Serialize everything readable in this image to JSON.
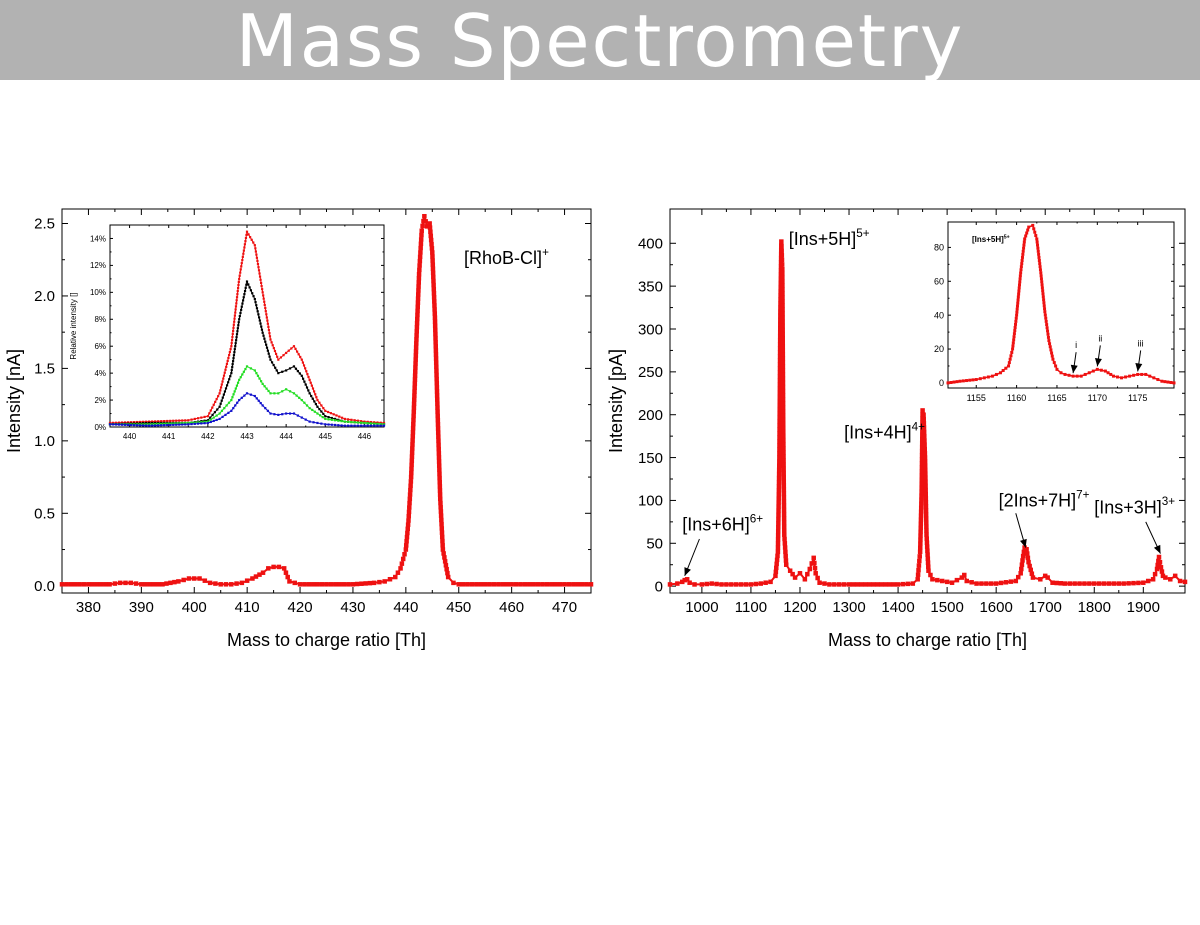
{
  "header": {
    "title": "Mass Spectrometry"
  },
  "colors": {
    "title_bar": "#b2b2b2",
    "title_text": "#ffffff",
    "series_red": "#ee1111",
    "inset_black": "#000000",
    "inset_green": "#22dd22",
    "inset_blue": "#1111cc"
  },
  "chart_data": [
    {
      "type": "line",
      "xlabel": "Mass to charge ratio [Th]",
      "ylabel": "Intensity [nA]",
      "xlim": [
        375,
        475
      ],
      "ylim": [
        -0.05,
        2.6
      ],
      "xticks": [
        380,
        390,
        400,
        410,
        420,
        430,
        440,
        450,
        460,
        470
      ],
      "yticks": [
        0.0,
        0.5,
        1.0,
        1.5,
        2.0,
        2.5
      ],
      "ytick_labels": [
        "0.0",
        "0.5",
        "1.0",
        "1.5",
        "2.0",
        "2.5"
      ],
      "grid": false,
      "series": [
        {
          "color": "#ee1111",
          "marker": "square",
          "x": [
            375,
            380,
            384,
            386,
            388,
            390,
            394,
            397,
            399,
            400,
            401,
            403,
            405,
            407,
            409,
            411,
            413,
            414,
            415,
            416,
            417,
            418,
            420,
            425,
            430,
            434,
            436,
            438,
            439,
            440,
            440.5,
            441,
            441.5,
            442,
            442.5,
            443,
            443.5,
            444,
            444.5,
            445,
            445.5,
            446,
            446.5,
            447,
            448,
            449,
            450,
            455,
            460,
            465,
            470,
            475
          ],
          "y": [
            0.01,
            0.01,
            0.01,
            0.02,
            0.02,
            0.01,
            0.01,
            0.03,
            0.05,
            0.05,
            0.05,
            0.02,
            0.01,
            0.01,
            0.02,
            0.05,
            0.09,
            0.12,
            0.13,
            0.13,
            0.12,
            0.03,
            0.01,
            0.01,
            0.01,
            0.02,
            0.03,
            0.06,
            0.12,
            0.25,
            0.45,
            0.75,
            1.2,
            1.7,
            2.15,
            2.45,
            2.55,
            2.48,
            2.5,
            2.3,
            1.85,
            1.2,
            0.6,
            0.25,
            0.06,
            0.02,
            0.01,
            0.01,
            0.01,
            0.01,
            0.01,
            0.01
          ]
        }
      ],
      "annotations": [
        {
          "text": "[RhoB-Cl]",
          "superscript": "+",
          "x": 451,
          "y": 2.22
        }
      ],
      "inset": {
        "type": "line",
        "ylabel": "Relative intensity []",
        "xlim": [
          439.5,
          446.5
        ],
        "ylim": [
          0,
          15
        ],
        "xticks": [
          440,
          441,
          442,
          443,
          444,
          445,
          446
        ],
        "yticks": [
          0,
          2,
          4,
          6,
          8,
          10,
          12,
          14
        ],
        "ytick_labels": [
          "0%",
          "2%",
          "4%",
          "6%",
          "8%",
          "10%",
          "12%",
          "14%"
        ],
        "series": [
          {
            "color": "#ee1111",
            "x": [
              439.5,
              440.5,
              441.5,
              442,
              442.3,
              442.6,
              442.8,
              443,
              443.2,
              443.4,
              443.6,
              443.8,
              444,
              444.2,
              444.4,
              444.6,
              444.8,
              445,
              445.5,
              446,
              446.5
            ],
            "y": [
              0.3,
              0.4,
              0.5,
              0.8,
              2.5,
              6,
              11,
              14.5,
              13.5,
              10,
              6.5,
              5,
              5.5,
              6,
              5,
              3.5,
              2,
              1.2,
              0.6,
              0.4,
              0.3
            ]
          },
          {
            "color": "#000000",
            "x": [
              439.5,
              440.5,
              441.5,
              442,
              442.3,
              442.6,
              442.8,
              443,
              443.2,
              443.4,
              443.6,
              443.8,
              444,
              444.2,
              444.4,
              444.6,
              444.8,
              445,
              445.5,
              446,
              446.5
            ],
            "y": [
              0.2,
              0.3,
              0.3,
              0.5,
              1.5,
              4,
              8,
              10.8,
              9.5,
              7,
              5,
              4,
              4.2,
              4.5,
              3.8,
              2.5,
              1.5,
              0.8,
              0.4,
              0.3,
              0.2
            ]
          },
          {
            "color": "#22dd22",
            "x": [
              439.5,
              440.5,
              441.5,
              442,
              442.3,
              442.6,
              442.8,
              443,
              443.2,
              443.4,
              443.6,
              443.8,
              444,
              444.2,
              444.4,
              444.6,
              444.8,
              445,
              445.5,
              446,
              446.5
            ],
            "y": [
              0.2,
              0.2,
              0.3,
              0.4,
              1,
              2,
              3.5,
              4.5,
              4.2,
              3.2,
              2.5,
              2.5,
              2.8,
              2.5,
              2,
              1.4,
              1,
              0.6,
              0.4,
              0.3,
              0.2
            ]
          },
          {
            "color": "#1111cc",
            "x": [
              439.5,
              440.5,
              441.5,
              442,
              442.3,
              442.6,
              442.8,
              443,
              443.2,
              443.4,
              443.6,
              443.8,
              444,
              444.2,
              444.4,
              444.6,
              444.8,
              445,
              445.5,
              446,
              446.5
            ],
            "y": [
              0.2,
              0.1,
              0.2,
              0.3,
              0.6,
              1.2,
              2,
              2.5,
              2.3,
              1.6,
              1,
              0.9,
              1,
              1,
              0.7,
              0.4,
              0.3,
              0.2,
              0.1,
              0.1,
              0.1
            ]
          }
        ]
      }
    },
    {
      "type": "line",
      "xlabel": "Mass to charge ratio [Th]",
      "ylabel": "Intensity [pA]",
      "xlim": [
        935,
        1985
      ],
      "ylim": [
        -8,
        440
      ],
      "xticks": [
        1000,
        1100,
        1200,
        1300,
        1400,
        1500,
        1600,
        1700,
        1800,
        1900
      ],
      "yticks": [
        0,
        50,
        100,
        150,
        200,
        250,
        300,
        350,
        400
      ],
      "ytick_labels": [
        "0",
        "50",
        "100",
        "150",
        "200",
        "250",
        "300",
        "350",
        "400"
      ],
      "grid": false,
      "series": [
        {
          "color": "#ee1111",
          "marker": "square",
          "x": [
            935,
            950,
            960,
            965,
            970,
            975,
            985,
            1000,
            1020,
            1040,
            1060,
            1080,
            1100,
            1120,
            1140,
            1150,
            1155,
            1158,
            1160,
            1162,
            1164,
            1166,
            1168,
            1172,
            1180,
            1190,
            1200,
            1210,
            1220,
            1228,
            1232,
            1240,
            1260,
            1300,
            1350,
            1400,
            1430,
            1440,
            1445,
            1448,
            1450,
            1452,
            1455,
            1458,
            1462,
            1470,
            1490,
            1510,
            1530,
            1535,
            1540,
            1560,
            1600,
            1640,
            1650,
            1655,
            1658,
            1662,
            1666,
            1675,
            1690,
            1700,
            1705,
            1715,
            1740,
            1780,
            1820,
            1860,
            1900,
            1920,
            1928,
            1932,
            1936,
            1940,
            1945,
            1955,
            1965,
            1975,
            1985
          ],
          "y": [
            2,
            3,
            5,
            7,
            8,
            4,
            2,
            2,
            3,
            2,
            2,
            2,
            2,
            3,
            5,
            12,
            40,
            150,
            320,
            402,
            370,
            180,
            60,
            25,
            18,
            10,
            15,
            8,
            20,
            33,
            15,
            4,
            2,
            2,
            2,
            2,
            3,
            8,
            40,
            110,
            205,
            200,
            150,
            60,
            18,
            8,
            6,
            4,
            10,
            13,
            6,
            3,
            3,
            6,
            15,
            35,
            45,
            43,
            28,
            10,
            8,
            12,
            10,
            4,
            3,
            3,
            3,
            3,
            4,
            8,
            20,
            34,
            22,
            12,
            10,
            8,
            12,
            6,
            5
          ]
        }
      ],
      "annotations": [
        {
          "text": "[Ins+5H]",
          "superscript": "5+",
          "x": 1177,
          "y": 398
        },
        {
          "text": "[Ins+4H]",
          "superscript": "4+",
          "x": 1290,
          "y": 172
        },
        {
          "text": "[Ins+6H]",
          "superscript": "6+",
          "x": 960,
          "y": 65
        },
        {
          "text": "[2Ins+7H]",
          "superscript": "7+",
          "x": 1605,
          "y": 93
        },
        {
          "text": "[Ins+3H]",
          "superscript": "3+",
          "x": 1800,
          "y": 85
        }
      ],
      "inset": {
        "type": "line",
        "xlim": [
          1151.5,
          1179.5
        ],
        "ylim": [
          -3,
          95
        ],
        "xticks": [
          1155,
          1160,
          1165,
          1170,
          1175
        ],
        "yticks": [
          0,
          20,
          40,
          60,
          80
        ],
        "ytick_labels": [
          "0",
          "20",
          "40",
          "60",
          "80"
        ],
        "title_label": "[Ins+5H]",
        "title_superscript": "5+",
        "peak_labels": [
          "i",
          "ii",
          "iii"
        ],
        "series": [
          {
            "color": "#ee1111",
            "x": [
              1151.5,
              1153,
              1155,
              1156,
              1157,
              1158,
              1159,
              1159.5,
              1160,
              1160.5,
              1161,
              1161.5,
              1162,
              1162.5,
              1163,
              1163.5,
              1164,
              1164.5,
              1165,
              1165.5,
              1166,
              1167,
              1168,
              1169,
              1170,
              1171,
              1172,
              1173,
              1174,
              1175,
              1176,
              1177,
              1178,
              1179.5
            ],
            "y": [
              0,
              1,
              2,
              3,
              4,
              6,
              10,
              20,
              40,
              65,
              85,
              92,
              93,
              85,
              65,
              42,
              25,
              14,
              8,
              6,
              5,
              4,
              4,
              6,
              8,
              7,
              4,
              3,
              4,
              5,
              5,
              3,
              1,
              0
            ]
          }
        ]
      }
    }
  ]
}
